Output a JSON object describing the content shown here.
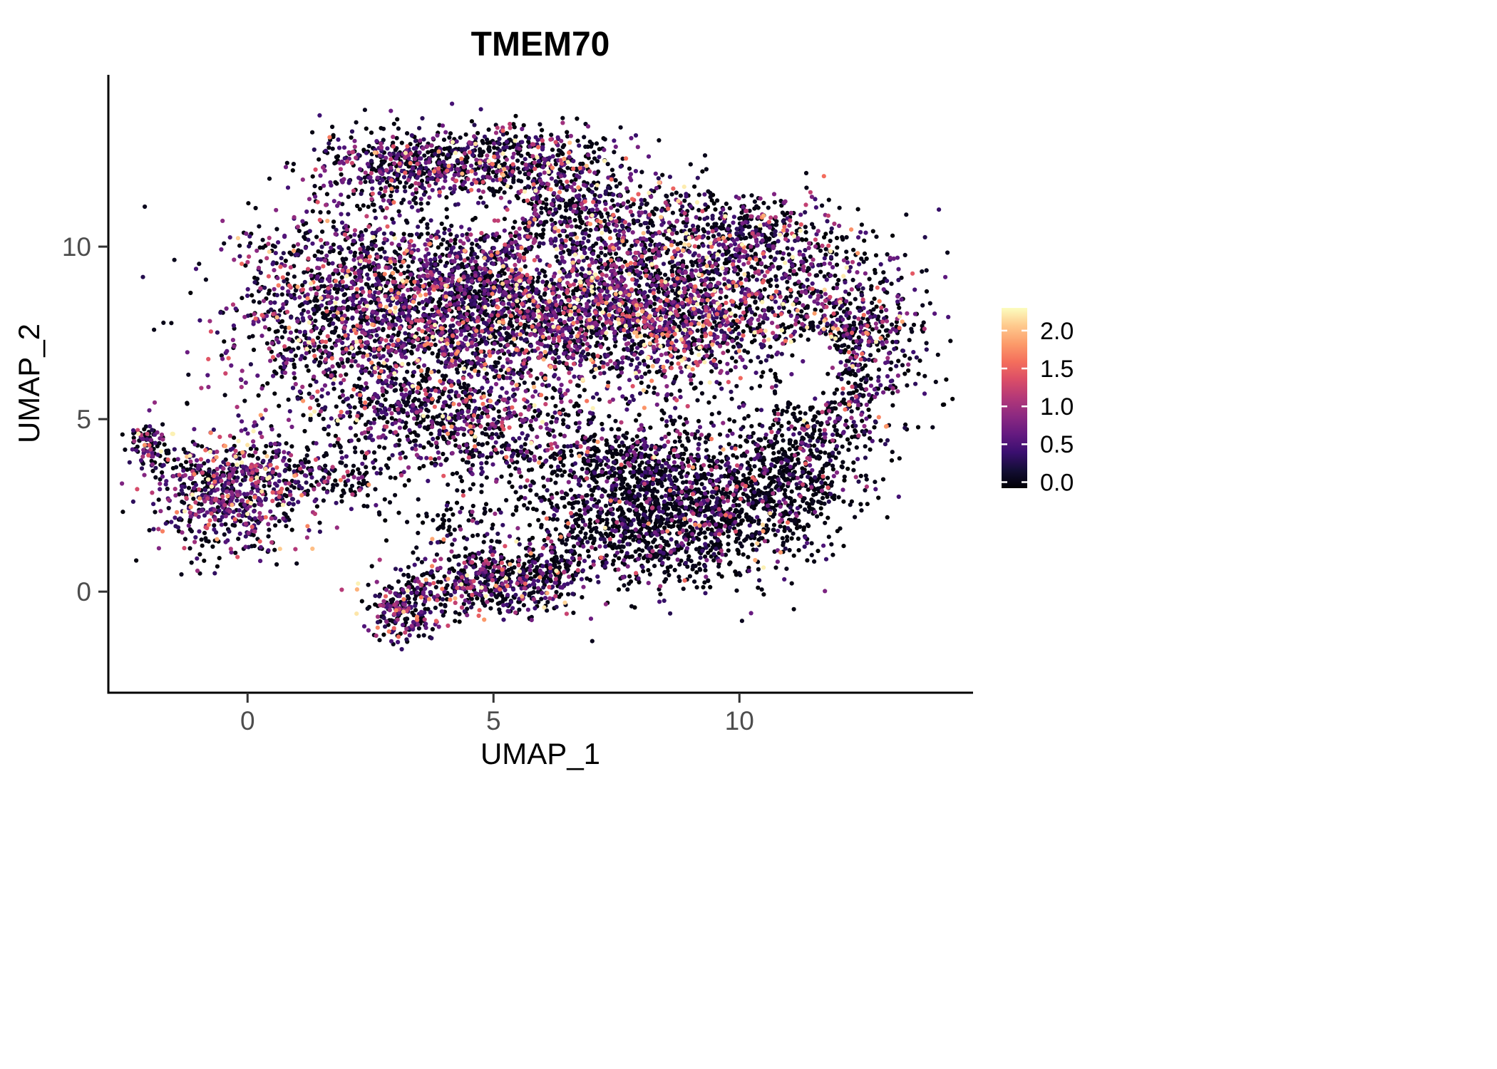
{
  "title": "TMEM70",
  "colors": {
    "background": "#ffffff",
    "axis": "#000000",
    "tick_label": "#4d4d4d",
    "point_low": "#000004",
    "point_mid": "#b5367a",
    "point_high": "#fcfdbf"
  },
  "chart_data": {
    "type": "scatter",
    "title": "TMEM70",
    "xlabel": "UMAP_1",
    "ylabel": "UMAP_2",
    "xlim": [
      -2.83,
      14.75
    ],
    "ylim": [
      -2.93,
      14.98
    ],
    "x_ticks": [
      0,
      5,
      10
    ],
    "y_ticks": [
      0,
      5,
      10
    ],
    "grid": false,
    "legend_position": "right",
    "point_radius": 3.1,
    "seed": 42,
    "colorbar": {
      "colormap": "magma",
      "vmin": 0.0,
      "vmax": 2.2,
      "tick_values": [
        2.0,
        1.5,
        1.0,
        0.5,
        0.0
      ],
      "tick_labels": [
        "2.0",
        "1.5",
        "1.0",
        "0.5",
        "0.0"
      ],
      "magma_anchors": [
        "#000004",
        "#140e36",
        "#3b0f70",
        "#651a80",
        "#8c2981",
        "#b33878",
        "#da4d68",
        "#f46e5c",
        "#fc9b6a",
        "#fec98d",
        "#fcfdbf"
      ]
    },
    "clusters": [
      {
        "name": "main-left",
        "cx": 2.3,
        "cy": 8.3,
        "sx": 1.35,
        "sy": 1.45,
        "n": 1500,
        "p0": 0.45,
        "m": 0.5
      },
      {
        "name": "main-center",
        "cx": 5.3,
        "cy": 8.4,
        "sx": 1.5,
        "sy": 1.4,
        "n": 1800,
        "p0": 0.48,
        "m": 0.5
      },
      {
        "name": "main-right-dense",
        "cx": 8.4,
        "cy": 8.2,
        "sx": 1.5,
        "sy": 1.15,
        "n": 1800,
        "p0": 0.42,
        "m": 0.55
      },
      {
        "name": "right-lobe",
        "cx": 12.1,
        "cy": 7.4,
        "sx": 0.85,
        "sy": 1.25,
        "n": 750,
        "p0": 0.55,
        "m": 0.5
      },
      {
        "name": "top-band-left",
        "cx": 3.4,
        "cy": 12.4,
        "sx": 0.95,
        "sy": 0.55,
        "n": 520,
        "p0": 0.5,
        "m": 0.5
      },
      {
        "name": "top-band-right",
        "cx": 5.7,
        "cy": 12.5,
        "sx": 1.0,
        "sy": 0.55,
        "n": 380,
        "p0": 0.55,
        "m": 0.5
      },
      {
        "name": "top-mid",
        "cx": 6.6,
        "cy": 11.1,
        "sx": 1.3,
        "sy": 0.75,
        "n": 520,
        "p0": 0.52,
        "m": 0.5
      },
      {
        "name": "top-right",
        "cx": 10.2,
        "cy": 10.2,
        "sx": 1.15,
        "sy": 0.65,
        "n": 480,
        "p0": 0.55,
        "m": 0.5
      },
      {
        "name": "main-bottom",
        "cx": 3.8,
        "cy": 5.3,
        "sx": 1.5,
        "sy": 0.65,
        "n": 600,
        "p0": 0.5,
        "m": 0.5
      },
      {
        "name": "mid-sparse",
        "cx": 5.1,
        "cy": 4.1,
        "sx": 1.3,
        "sy": 0.55,
        "n": 260,
        "p0": 0.65,
        "m": 0.45
      },
      {
        "name": "lowmid-band",
        "cx": 7.9,
        "cy": 3.9,
        "sx": 1.2,
        "sy": 0.6,
        "n": 420,
        "p0": 0.7,
        "m": 0.4
      },
      {
        "name": "lower-right",
        "cx": 8.6,
        "cy": 2.2,
        "sx": 1.35,
        "sy": 0.95,
        "n": 1500,
        "p0": 0.78,
        "m": 0.38
      },
      {
        "name": "right-ext",
        "cx": 11.0,
        "cy": 3.2,
        "sx": 0.75,
        "sy": 0.8,
        "n": 380,
        "p0": 0.78,
        "m": 0.38
      },
      {
        "name": "right-conn",
        "cx": 11.5,
        "cy": 4.7,
        "sx": 0.7,
        "sy": 0.6,
        "n": 200,
        "p0": 0.7,
        "m": 0.4
      },
      {
        "name": "left-cluster",
        "cx": -0.3,
        "cy": 2.9,
        "sx": 0.85,
        "sy": 0.85,
        "n": 800,
        "p0": 0.38,
        "m": 0.55
      },
      {
        "name": "left-tail",
        "cx": -2.0,
        "cy": 4.2,
        "sx": 0.2,
        "sy": 0.35,
        "n": 90,
        "p0": 0.45,
        "m": 0.5
      },
      {
        "name": "left-bridge",
        "cx": 1.9,
        "cy": 3.3,
        "sx": 0.55,
        "sy": 0.45,
        "n": 110,
        "p0": 0.7,
        "m": 0.4
      },
      {
        "name": "bottom-cluster",
        "cx": 4.9,
        "cy": 0.3,
        "sx": 0.8,
        "sy": 0.5,
        "n": 470,
        "p0": 0.52,
        "m": 0.5
      },
      {
        "name": "bottom-right-arm",
        "cx": 6.2,
        "cy": 0.5,
        "sx": 0.45,
        "sy": 0.5,
        "n": 150,
        "p0": 0.6,
        "m": 0.45
      },
      {
        "name": "bottom-drip",
        "cx": 3.15,
        "cy": -0.5,
        "sx": 0.35,
        "sy": 0.45,
        "n": 230,
        "p0": 0.5,
        "m": 0.5
      },
      {
        "name": "between-floaters",
        "cx": 4.4,
        "cy": 1.9,
        "sx": 0.6,
        "sy": 0.5,
        "n": 70,
        "p0": 0.75,
        "m": 0.4
      }
    ],
    "holes": [
      {
        "name": "ring-hole",
        "cx": 11.45,
        "cy": 6.4,
        "rx": 0.62,
        "ry": 1.05,
        "p": 0.92
      },
      {
        "name": "mid-gap",
        "cx": 6.1,
        "cy": 9.5,
        "rx": 0.5,
        "ry": 0.5,
        "p": 0.8
      },
      {
        "name": "top-gap",
        "cx": 4.7,
        "cy": 11.0,
        "rx": 1.05,
        "ry": 0.6,
        "p": 0.85
      }
    ]
  }
}
